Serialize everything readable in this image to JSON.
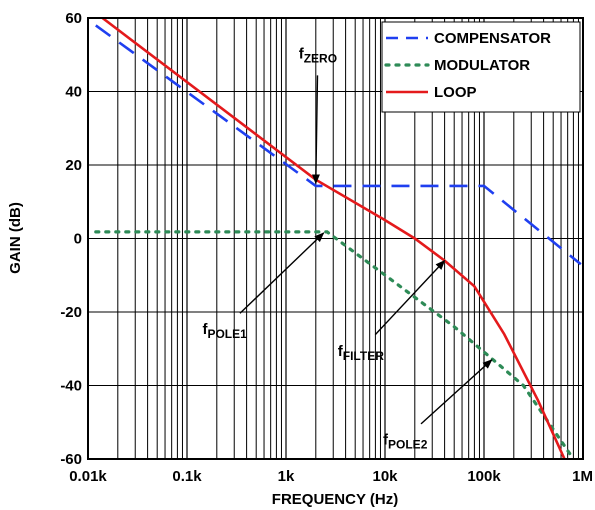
{
  "chart_data": {
    "type": "line",
    "title": "",
    "xlabel": "FREQUENCY (Hz)",
    "ylabel": "GAIN (dB)",
    "xscale": "log",
    "xlim": [
      10,
      1000000
    ],
    "ylim": [
      -60,
      60
    ],
    "grid": true,
    "legend_position": "top-right",
    "x_ticks": [
      {
        "value": 10,
        "label": "0.01k"
      },
      {
        "value": 100,
        "label": "0.1k"
      },
      {
        "value": 1000,
        "label": "1k"
      },
      {
        "value": 10000,
        "label": "10k"
      },
      {
        "value": 100000,
        "label": "100k"
      },
      {
        "value": 1000000,
        "label": "1M"
      }
    ],
    "y_ticks": [
      {
        "value": 60,
        "label": "60"
      },
      {
        "value": 40,
        "label": "40"
      },
      {
        "value": 20,
        "label": "20"
      },
      {
        "value": 0,
        "label": "0"
      },
      {
        "value": -20,
        "label": "-20"
      },
      {
        "value": -40,
        "label": "-40"
      },
      {
        "value": -60,
        "label": "-60"
      }
    ],
    "series": [
      {
        "name": "COMPENSATOR",
        "color": "#1f3ff0",
        "style": "dashed",
        "points": [
          [
            12,
            58
          ],
          [
            2000,
            14.3
          ],
          [
            100000,
            14.3
          ],
          [
            950000,
            -7
          ]
        ]
      },
      {
        "name": "MODULATOR",
        "color": "#2e8b57",
        "style": "dotted",
        "points": [
          [
            12,
            1.8
          ],
          [
            2600,
            1.8
          ],
          [
            50000,
            -24
          ],
          [
            250000,
            -40
          ],
          [
            800000,
            -60
          ]
        ]
      },
      {
        "name": "LOOP",
        "color": "#e41a1c",
        "style": "solid",
        "points": [
          [
            14,
            60
          ],
          [
            2000,
            16
          ],
          [
            10000,
            5
          ],
          [
            20000,
            0
          ],
          [
            40000,
            -6
          ],
          [
            80000,
            -13
          ],
          [
            160000,
            -26
          ],
          [
            350000,
            -44
          ],
          [
            650000,
            -60
          ]
        ]
      }
    ],
    "annotations": [
      {
        "name": "f-zero",
        "main": "f",
        "sub": "ZERO",
        "label_x": 2100,
        "label_y": 49,
        "arrow_to_x": 2000,
        "arrow_to_y": 15
      },
      {
        "name": "f-pole1",
        "main": "f",
        "sub": "POLE1",
        "label_x": 240,
        "label_y": -26,
        "arrow_to_x": 2400,
        "arrow_to_y": 1.5
      },
      {
        "name": "f-filter",
        "main": "f",
        "sub": "FILTER",
        "label_x": 5700,
        "label_y": -32,
        "arrow_to_x": 40000,
        "arrow_to_y": -6
      },
      {
        "name": "f-pole2",
        "main": "f",
        "sub": "POLE2",
        "label_x": 16000,
        "label_y": -56,
        "arrow_to_x": 120000,
        "arrow_to_y": -33
      }
    ]
  }
}
